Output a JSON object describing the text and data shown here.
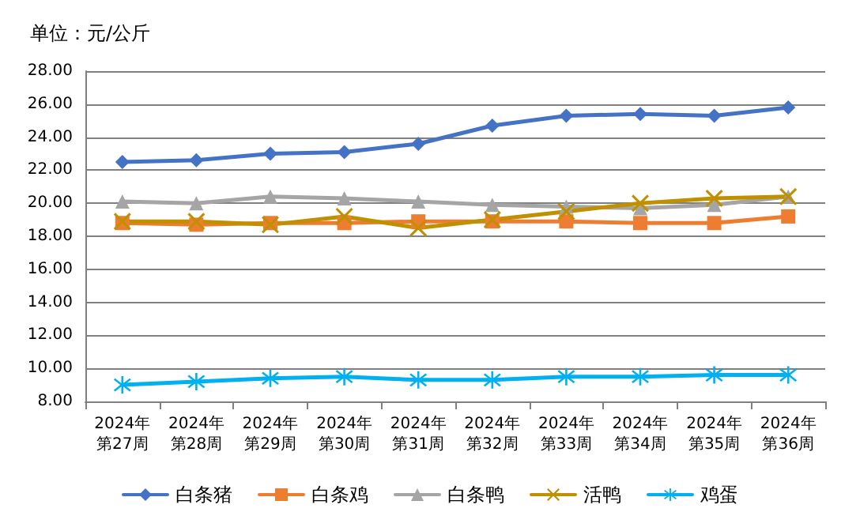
{
  "chart_data": {
    "type": "line",
    "ylabel": "单位：元/公斤",
    "categories": [
      "2024年第27周",
      "2024年第28周",
      "2024年第29周",
      "2024年第30周",
      "2024年第31周",
      "2024年第32周",
      "2024年第33周",
      "2024年第34周",
      "2024年第35周",
      "2024年第36周"
    ],
    "series": [
      {
        "name": "白条猪",
        "color": "#4472c4",
        "marker": "diamond",
        "values": [
          22.5,
          22.6,
          23.0,
          23.1,
          23.6,
          24.7,
          25.3,
          25.4,
          25.3,
          25.8
        ]
      },
      {
        "name": "白条鸡",
        "color": "#ed7d31",
        "marker": "square",
        "values": [
          18.8,
          18.7,
          18.8,
          18.8,
          18.9,
          18.9,
          18.9,
          18.8,
          18.8,
          19.2
        ]
      },
      {
        "name": "白条鸭",
        "color": "#a5a5a5",
        "marker": "triangle",
        "values": [
          20.1,
          20.0,
          20.4,
          20.3,
          20.1,
          19.9,
          19.8,
          19.7,
          19.9,
          20.4
        ]
      },
      {
        "name": "活鸭",
        "color": "#bf9000",
        "marker": "cross",
        "values": [
          18.9,
          18.9,
          18.7,
          19.2,
          18.5,
          19.0,
          19.5,
          20.0,
          20.3,
          20.4
        ]
      },
      {
        "name": "鸡蛋",
        "color": "#00b0f0",
        "marker": "star",
        "values": [
          9.0,
          9.2,
          9.4,
          9.5,
          9.3,
          9.3,
          9.5,
          9.5,
          9.6,
          9.6
        ]
      }
    ],
    "ylim": [
      8,
      28
    ],
    "yticks": [
      {
        "value": 8,
        "label": "8.00"
      },
      {
        "value": 10,
        "label": "10.00"
      },
      {
        "value": 12,
        "label": "12.00"
      },
      {
        "value": 14,
        "label": "14.00"
      },
      {
        "value": 16,
        "label": "16.00"
      },
      {
        "value": 18,
        "label": "18.00"
      },
      {
        "value": 20,
        "label": "20.00"
      },
      {
        "value": 22,
        "label": "22.00"
      },
      {
        "value": 24,
        "label": "24.00"
      },
      {
        "value": 26,
        "label": "26.00"
      },
      {
        "value": 28,
        "label": "28.00"
      }
    ],
    "grid": "y",
    "legend": "bottom"
  }
}
